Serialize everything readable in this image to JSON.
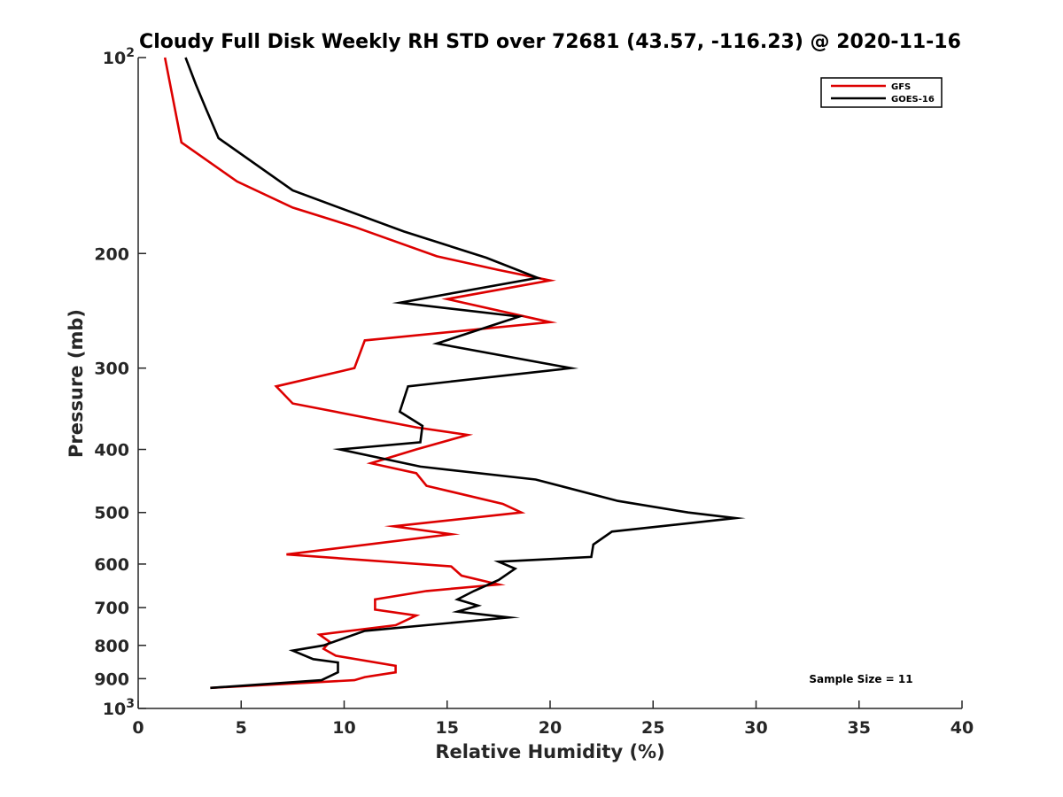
{
  "chart_data": {
    "type": "line",
    "title": "Cloudy Full Disk Weekly RH STD over 72681 (43.57, -116.23) @ 2020-11-16",
    "xlabel": "Relative Humidity (%)",
    "ylabel": "Pressure (mb)",
    "xlim": [
      0,
      40
    ],
    "ylim": [
      100,
      1000
    ],
    "y_scale": "log",
    "y_reversed": true,
    "grid": false,
    "legend_position": "top-right",
    "x_ticks": [
      0,
      5,
      10,
      15,
      20,
      25,
      30,
      35,
      40
    ],
    "y_ticks": [
      {
        "value": 100,
        "label": "10",
        "sup": "2"
      },
      {
        "value": 200,
        "label": "200",
        "sup": ""
      },
      {
        "value": 300,
        "label": "300",
        "sup": ""
      },
      {
        "value": 400,
        "label": "400",
        "sup": ""
      },
      {
        "value": 500,
        "label": "500",
        "sup": ""
      },
      {
        "value": 600,
        "label": "600",
        "sup": ""
      },
      {
        "value": 700,
        "label": "700",
        "sup": ""
      },
      {
        "value": 800,
        "label": "800",
        "sup": ""
      },
      {
        "value": 900,
        "label": "900",
        "sup": ""
      },
      {
        "value": 1000,
        "label": "10",
        "sup": "3"
      }
    ],
    "series": [
      {
        "name": "GFS",
        "color": "#dd0000",
        "points": [
          [
            1.3,
            100
          ],
          [
            2.1,
            135
          ],
          [
            4.8,
            155
          ],
          [
            7.5,
            170
          ],
          [
            10.5,
            182
          ],
          [
            14.5,
            202
          ],
          [
            17.5,
            212
          ],
          [
            20.0,
            220
          ],
          [
            15.0,
            235
          ],
          [
            20.0,
            255
          ],
          [
            11.0,
            272
          ],
          [
            10.5,
            300
          ],
          [
            6.7,
            320
          ],
          [
            7.5,
            340
          ],
          [
            13.5,
            370
          ],
          [
            16.0,
            380
          ],
          [
            13.5,
            400
          ],
          [
            11.3,
            420
          ],
          [
            13.5,
            435
          ],
          [
            14.0,
            455
          ],
          [
            17.7,
            485
          ],
          [
            18.6,
            500
          ],
          [
            12.4,
            525
          ],
          [
            15.2,
            540
          ],
          [
            7.2,
            580
          ],
          [
            15.2,
            605
          ],
          [
            15.7,
            625
          ],
          [
            17.5,
            645
          ],
          [
            14.0,
            660
          ],
          [
            11.5,
            680
          ],
          [
            11.5,
            705
          ],
          [
            13.5,
            720
          ],
          [
            12.5,
            745
          ],
          [
            8.8,
            770
          ],
          [
            9.3,
            790
          ],
          [
            9.0,
            810
          ],
          [
            9.6,
            830
          ],
          [
            12.5,
            860
          ],
          [
            12.5,
            880
          ],
          [
            11.0,
            895
          ],
          [
            10.5,
            905
          ],
          [
            3.5,
            930
          ]
        ]
      },
      {
        "name": "GOES-16",
        "color": "#000000",
        "points": [
          [
            2.3,
            100
          ],
          [
            2.8,
            110
          ],
          [
            3.3,
            120
          ],
          [
            3.9,
            133
          ],
          [
            7.5,
            160
          ],
          [
            12.9,
            185
          ],
          [
            16.9,
            203
          ],
          [
            19.4,
            218
          ],
          [
            12.7,
            238
          ],
          [
            18.5,
            250
          ],
          [
            14.5,
            275
          ],
          [
            21.0,
            300
          ],
          [
            13.1,
            320
          ],
          [
            12.7,
            350
          ],
          [
            13.8,
            368
          ],
          [
            13.7,
            390
          ],
          [
            9.8,
            400
          ],
          [
            13.7,
            425
          ],
          [
            19.3,
            445
          ],
          [
            23.3,
            480
          ],
          [
            26.7,
            500
          ],
          [
            29.0,
            510
          ],
          [
            23.0,
            535
          ],
          [
            22.1,
            560
          ],
          [
            22.0,
            585
          ],
          [
            17.5,
            595
          ],
          [
            18.3,
            610
          ],
          [
            17.5,
            635
          ],
          [
            16.3,
            660
          ],
          [
            15.5,
            680
          ],
          [
            16.5,
            695
          ],
          [
            15.5,
            710
          ],
          [
            18.0,
            725
          ],
          [
            11.0,
            760
          ],
          [
            9.0,
            800
          ],
          [
            7.5,
            815
          ],
          [
            8.5,
            840
          ],
          [
            9.7,
            850
          ],
          [
            9.7,
            880
          ],
          [
            8.9,
            905
          ],
          [
            3.5,
            930
          ]
        ]
      }
    ],
    "legend": [
      {
        "label": "GFS",
        "color": "#dd0000"
      },
      {
        "label": "GOES-16",
        "color": "#000000"
      }
    ],
    "annotations": [
      {
        "text": "Sample Size = 11"
      }
    ]
  }
}
